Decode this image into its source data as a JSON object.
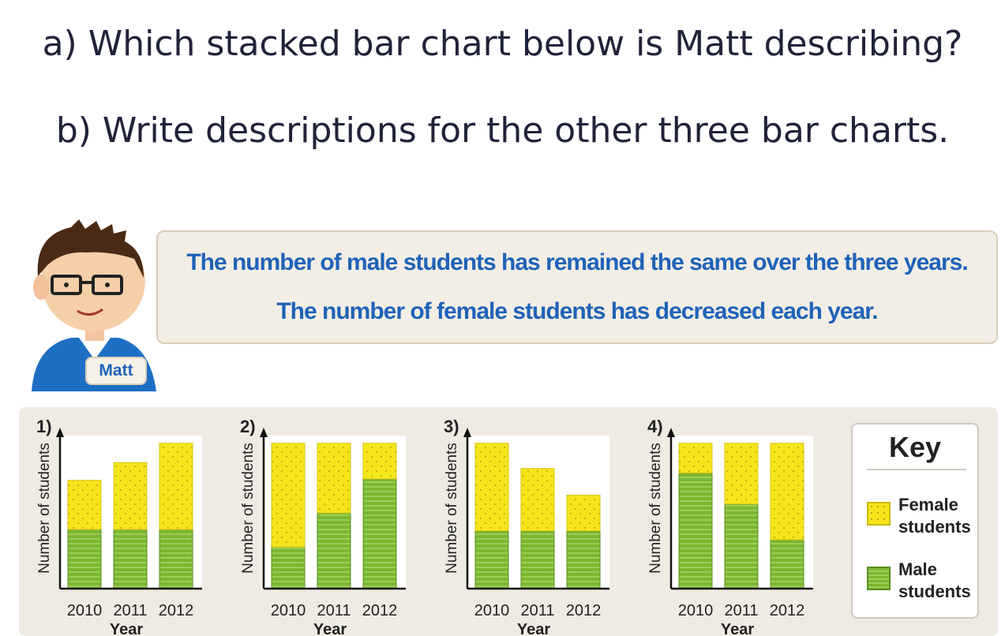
{
  "questions": {
    "a": "a) Which stacked bar chart below is Matt describing?",
    "b": "b) Write descriptions for the other three bar charts."
  },
  "speech": {
    "line1": "The number of male students has remained the same over the three years.",
    "line2": "The number of female students has decreased each year."
  },
  "character": {
    "name": "Matt"
  },
  "colors": {
    "female": "#f7e51b",
    "male": "#7bb72f",
    "text": "#1e63b8"
  },
  "key": {
    "title": "Key",
    "female_label_1": "Female",
    "female_label_2": "students",
    "male_label_1": "Male",
    "male_label_2": "students"
  },
  "chart_data": [
    {
      "type": "bar",
      "stacked": true,
      "label": "1)",
      "categories": [
        "2010",
        "2011",
        "2012"
      ],
      "xlabel": "Year",
      "ylabel": "Number of students",
      "ylim": [
        0,
        100
      ],
      "series": [
        {
          "name": "Male students",
          "values": [
            40,
            40,
            40
          ]
        },
        {
          "name": "Female students",
          "values": [
            33,
            45,
            58
          ]
        }
      ]
    },
    {
      "type": "bar",
      "stacked": true,
      "label": "2)",
      "categories": [
        "2010",
        "2011",
        "2012"
      ],
      "xlabel": "Year",
      "ylabel": "Number of students",
      "ylim": [
        0,
        100
      ],
      "series": [
        {
          "name": "Male students",
          "values": [
            28,
            51,
            74
          ]
        },
        {
          "name": "Female students",
          "values": [
            70,
            47,
            24
          ]
        }
      ]
    },
    {
      "type": "bar",
      "stacked": true,
      "label": "3)",
      "categories": [
        "2010",
        "2011",
        "2012"
      ],
      "xlabel": "Year",
      "ylabel": "Number of students",
      "ylim": [
        0,
        100
      ],
      "series": [
        {
          "name": "Male students",
          "values": [
            39,
            39,
            39
          ]
        },
        {
          "name": "Female students",
          "values": [
            59,
            42,
            24
          ]
        }
      ]
    },
    {
      "type": "bar",
      "stacked": true,
      "label": "4)",
      "categories": [
        "2010",
        "2011",
        "2012"
      ],
      "xlabel": "Year",
      "ylabel": "Number of students",
      "ylim": [
        0,
        100
      ],
      "series": [
        {
          "name": "Male students",
          "values": [
            78,
            57,
            33
          ]
        },
        {
          "name": "Female students",
          "values": [
            20,
            41,
            65
          ]
        }
      ]
    }
  ]
}
